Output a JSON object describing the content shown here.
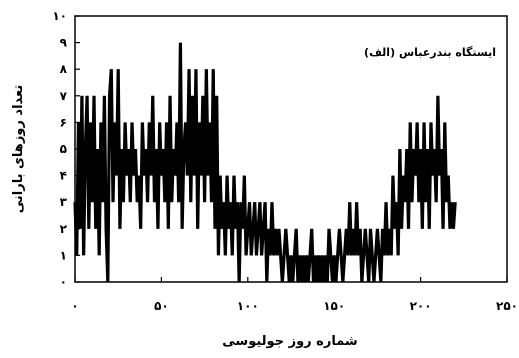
{
  "chart_data": {
    "type": "line",
    "title": "",
    "xlabel": "شماره روز جولیوسی",
    "ylabel": "تعداد روزهای بارانی",
    "annotation": "(الف) ایستگاه بندرعباس",
    "xlim": [
      0,
      250
    ],
    "ylim": [
      0,
      10
    ],
    "xticks": [
      0,
      50,
      100,
      150,
      200,
      250
    ],
    "xtick_labels": [
      "۰",
      "۵۰",
      "۱۰۰",
      "۱۵۰",
      "۲۰۰",
      "۲۵۰"
    ],
    "yticks": [
      0,
      1,
      2,
      3,
      4,
      5,
      6,
      7,
      8,
      9,
      10
    ],
    "ytick_labels": [
      "۰",
      "۱",
      "۲",
      "۳",
      "۴",
      "۵",
      "۶",
      "۷",
      "۸",
      "۹",
      "۱۰"
    ],
    "grid": false,
    "line_color": "#000000",
    "series": [
      {
        "x": [
          0,
          1,
          2,
          3,
          4,
          5,
          6,
          7,
          8,
          9,
          10,
          11,
          12,
          13,
          14,
          15,
          16,
          17,
          18,
          19,
          20,
          21,
          22,
          23,
          24,
          25,
          26,
          27,
          28,
          29,
          30,
          31,
          32,
          33,
          34,
          35,
          36,
          37,
          38,
          39,
          40,
          41,
          42,
          43,
          44,
          45,
          46,
          47,
          48,
          49,
          50,
          51,
          52,
          53,
          54,
          55,
          56,
          57,
          58,
          59,
          60,
          61,
          62,
          63,
          64,
          65,
          66,
          67,
          68,
          69,
          70,
          71,
          72,
          73,
          74,
          75,
          76,
          77,
          78,
          79,
          80,
          81,
          82,
          83,
          84,
          85,
          86,
          87,
          88,
          89,
          90,
          91,
          92,
          93,
          94,
          95,
          96,
          97,
          98,
          99,
          100,
          101,
          102,
          103,
          104,
          105,
          106,
          107,
          108,
          109,
          110,
          111,
          112,
          113,
          114,
          115,
          116,
          117,
          118,
          119,
          120,
          121,
          122,
          123,
          124,
          125,
          126,
          127,
          128,
          129,
          130,
          131,
          132,
          133,
          134,
          135,
          136,
          137,
          138,
          139,
          140,
          141,
          142,
          143,
          144,
          145,
          146,
          147,
          148,
          149,
          150,
          151,
          152,
          153,
          154,
          155,
          156,
          157,
          158,
          159,
          160,
          161,
          162,
          163,
          164,
          165,
          166,
          167,
          168,
          169,
          170,
          171,
          172,
          173,
          174,
          175,
          176,
          177,
          178,
          179,
          180,
          181,
          182,
          183,
          184,
          185,
          186,
          187,
          188,
          189,
          190,
          191,
          192,
          193,
          194,
          195,
          196,
          197,
          198,
          199,
          200,
          201,
          202,
          203,
          204,
          205,
          206,
          207,
          208,
          209,
          210,
          211,
          212,
          213,
          214,
          215,
          216,
          217,
          218,
          219,
          220
        ],
        "values": [
          3,
          1,
          6,
          2,
          7,
          1,
          5,
          7,
          2,
          6,
          3,
          7,
          2,
          5,
          1,
          6,
          3,
          7,
          2,
          0,
          7,
          8,
          3,
          6,
          4,
          8,
          2,
          5,
          3,
          6,
          4,
          5,
          3,
          6,
          4,
          5,
          3,
          4,
          2,
          6,
          4,
          5,
          3,
          6,
          4,
          7,
          3,
          5,
          2,
          6,
          4,
          5,
          3,
          6,
          2,
          7,
          3,
          5,
          4,
          6,
          3,
          9,
          2,
          5,
          6,
          4,
          8,
          3,
          7,
          4,
          8,
          2,
          6,
          4,
          7,
          3,
          8,
          4,
          6,
          3,
          8,
          2,
          7,
          1,
          4,
          2,
          3,
          1,
          4,
          2,
          3,
          1,
          4,
          2,
          3,
          0,
          3,
          2,
          4,
          1,
          2,
          3,
          1,
          2,
          3,
          1,
          2,
          3,
          1,
          2,
          3,
          0,
          2,
          1,
          3,
          1,
          2,
          1,
          2,
          1,
          0,
          1,
          2,
          1,
          0,
          1,
          0,
          1,
          2,
          0,
          1,
          0,
          1,
          0,
          1,
          0,
          1,
          2,
          0,
          1,
          0,
          1,
          0,
          1,
          0,
          1,
          0,
          2,
          1,
          0,
          1,
          0,
          1,
          2,
          1,
          0,
          1,
          2,
          1,
          3,
          1,
          2,
          1,
          3,
          1,
          2,
          0,
          1,
          2,
          1,
          0,
          2,
          1,
          0,
          1,
          2,
          1,
          0,
          2,
          1,
          3,
          1,
          2,
          1,
          4,
          2,
          3,
          1,
          5,
          2,
          4,
          3,
          5,
          2,
          6,
          3,
          5,
          4,
          6,
          3,
          5,
          2,
          6,
          3,
          5,
          2,
          6,
          4,
          5,
          3,
          7,
          4,
          5,
          2,
          6,
          3,
          4,
          2,
          3,
          2,
          3
        ]
      }
    ]
  }
}
